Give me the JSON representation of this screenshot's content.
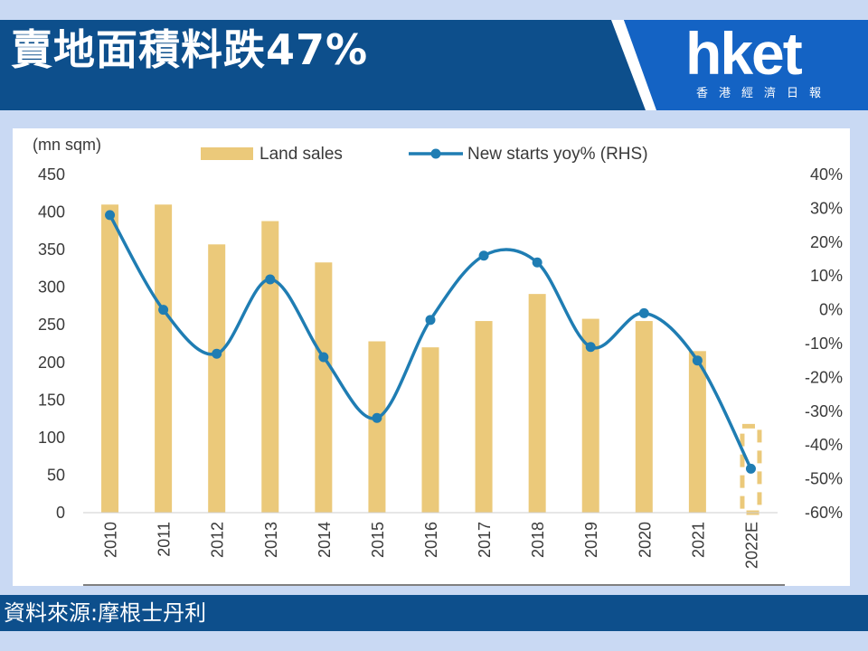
{
  "header": {
    "title": "賣地面積料跌47%",
    "logo_text": "hket",
    "logo_subtitle": "香港經濟日報"
  },
  "footer": {
    "source": "資料來源:摩根士丹利"
  },
  "colors": {
    "header_bg": "#0d4f8c",
    "logo_bg": "#1463c4",
    "bar": "#ebc97a",
    "line": "#1f7db3",
    "page_bg": "#c9d9f3"
  },
  "chart_data": {
    "type": "bar",
    "categories": [
      "2010",
      "2011",
      "2012",
      "2013",
      "2014",
      "2015",
      "2016",
      "2017",
      "2018",
      "2019",
      "2020",
      "2021",
      "2022E"
    ],
    "left_axis_unit_label": "(mn sqm)",
    "ylim_left": [
      0,
      450
    ],
    "yticks_left": [
      "450",
      "400",
      "350",
      "300",
      "250",
      "200",
      "150",
      "100",
      "50",
      "0"
    ],
    "ylim_right": [
      -60,
      40
    ],
    "yticks_right": [
      "40%",
      "30%",
      "20%",
      "10%",
      "0%",
      "-10%",
      "-20%",
      "-30%",
      "-40%",
      "-50%",
      "-60%"
    ],
    "legend_position": "top",
    "series": [
      {
        "name": "Land sales",
        "type": "bar",
        "axis": "left",
        "color": "#ebc97a",
        "values": [
          410,
          410,
          357,
          388,
          333,
          228,
          220,
          255,
          291,
          258,
          255,
          215,
          115
        ],
        "estimated_last": true
      },
      {
        "name": "New starts yoy% (RHS)",
        "type": "line",
        "axis": "right",
        "color": "#1f7db3",
        "values": [
          28,
          0,
          -13,
          9,
          -14,
          -32,
          -3,
          16,
          14,
          -11,
          -1,
          -15,
          -47
        ]
      }
    ]
  }
}
